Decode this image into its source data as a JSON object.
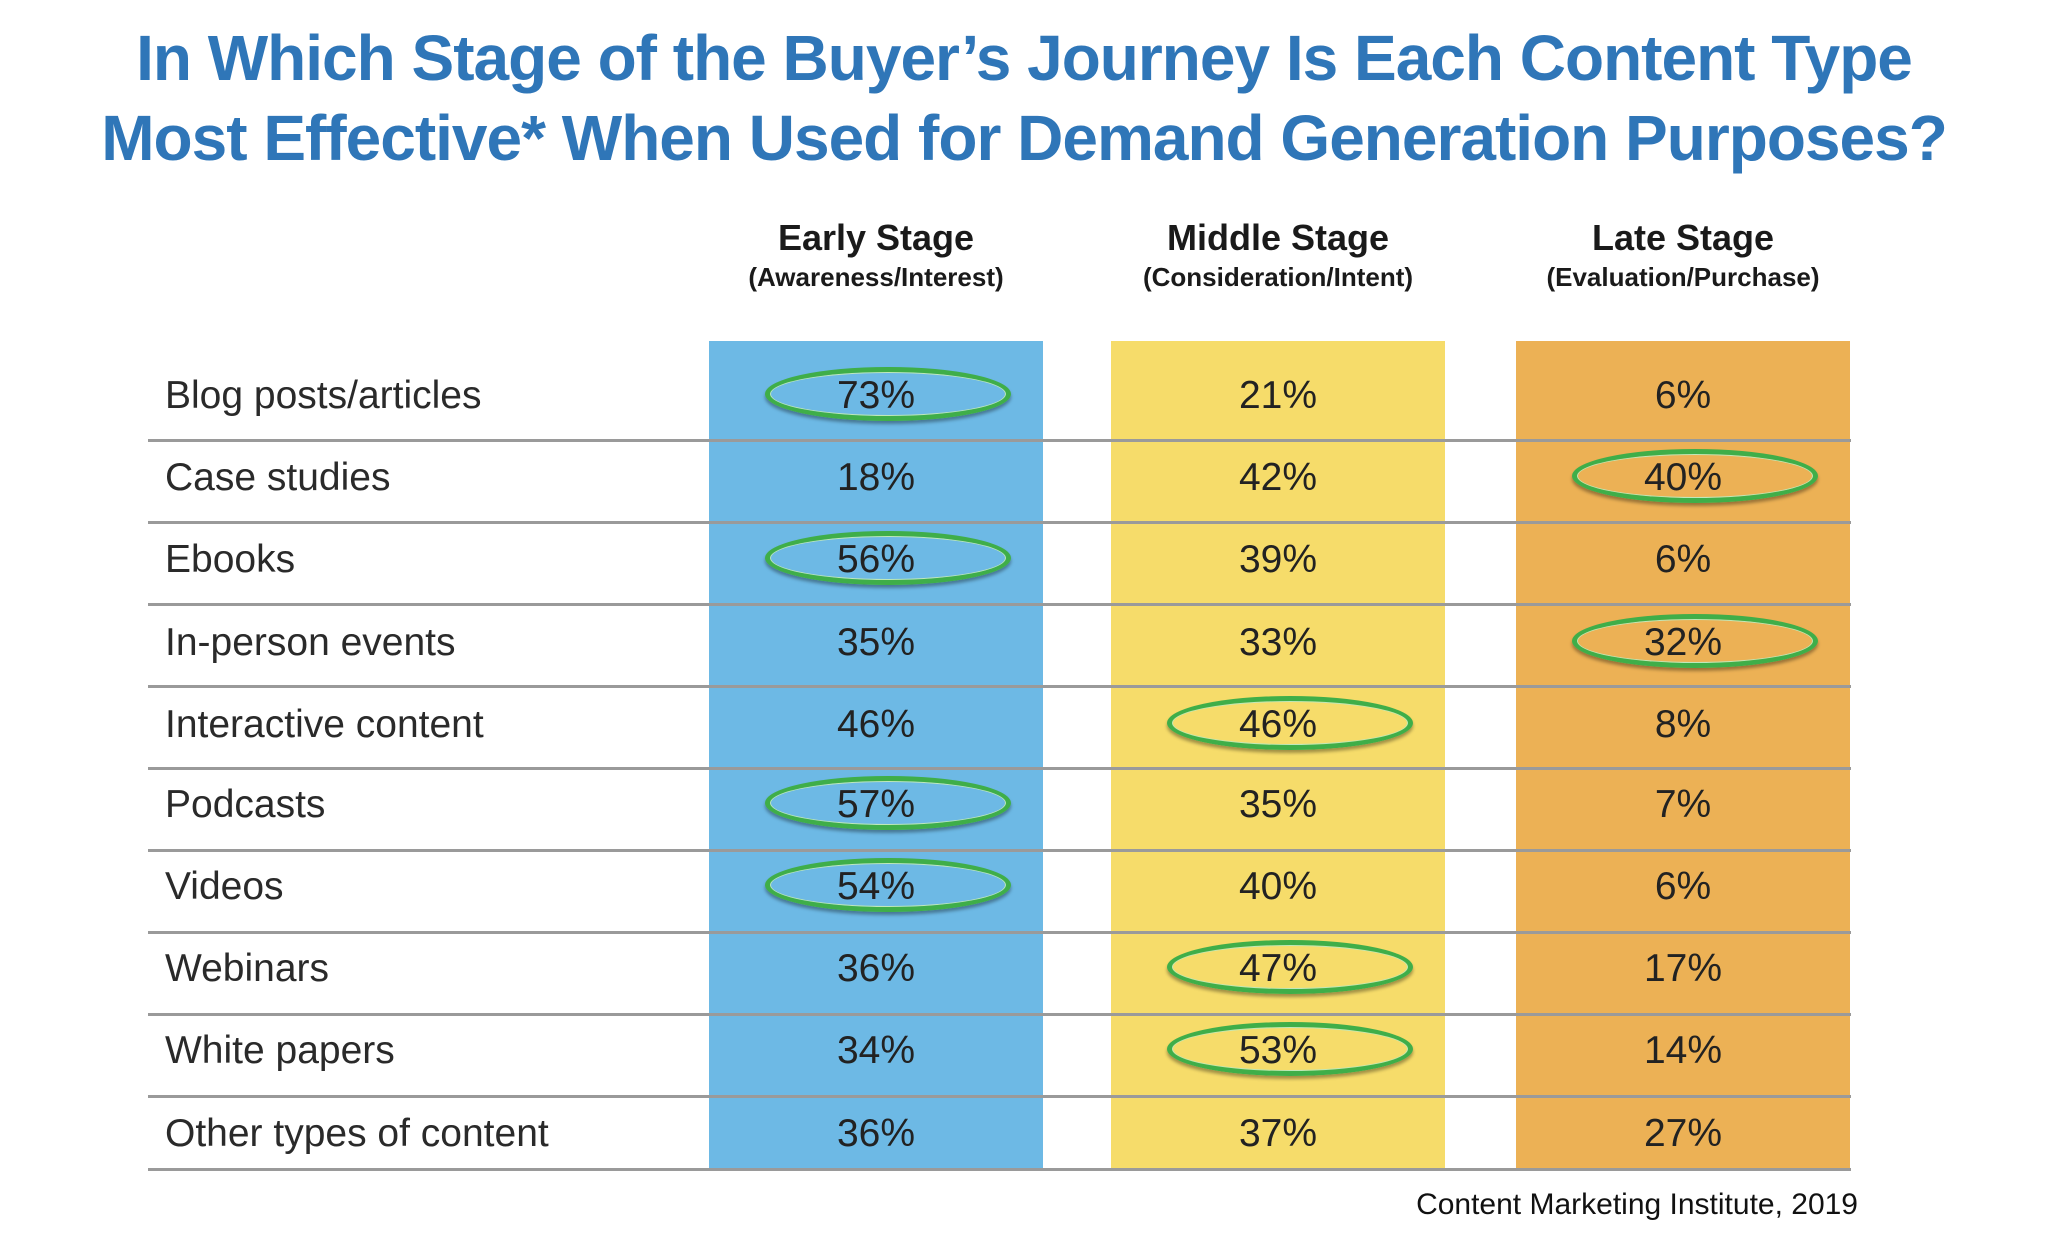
{
  "chart_data": {
    "type": "table",
    "title_line1": "In Which Stage of the Buyer’s Journey Is Each Content Type",
    "title_line2": "Most Effective* When Used for Demand Generation Purposes?",
    "columns": [
      {
        "label": "Early Stage",
        "sublabel": "(Awareness/Interest)",
        "color": "#6db9e5"
      },
      {
        "label": "Middle Stage",
        "sublabel": "(Consideration/Intent)",
        "color": "#f6dc6a"
      },
      {
        "label": "Late Stage",
        "sublabel": "(Evaluation/Purchase)",
        "color": "#ecb155"
      }
    ],
    "rows": [
      {
        "label": "Blog posts/articles",
        "values": [
          "73%",
          "21%",
          "6%"
        ],
        "highlighted": [
          0
        ]
      },
      {
        "label": "Case studies",
        "values": [
          "18%",
          "42%",
          "40%"
        ],
        "highlighted": [
          2
        ]
      },
      {
        "label": "Ebooks",
        "values": [
          "56%",
          "39%",
          "6%"
        ],
        "highlighted": [
          0
        ]
      },
      {
        "label": "In-person events",
        "values": [
          "35%",
          "33%",
          "32%"
        ],
        "highlighted": [
          2
        ]
      },
      {
        "label": "Interactive content",
        "values": [
          "46%",
          "46%",
          "8%"
        ],
        "highlighted": [
          1
        ]
      },
      {
        "label": "Podcasts",
        "values": [
          "57%",
          "35%",
          "7%"
        ],
        "highlighted": [
          0
        ]
      },
      {
        "label": "Videos",
        "values": [
          "54%",
          "40%",
          "6%"
        ],
        "highlighted": [
          0
        ]
      },
      {
        "label": "Webinars",
        "values": [
          "36%",
          "47%",
          "17%"
        ],
        "highlighted": [
          1
        ]
      },
      {
        "label": "White papers",
        "values": [
          "34%",
          "53%",
          "14%"
        ],
        "highlighted": [
          1
        ]
      },
      {
        "label": "Other types of content",
        "values": [
          "36%",
          "37%",
          "27%"
        ],
        "highlighted": []
      }
    ],
    "highlight_color": "#3fae49",
    "separator_color": "#9a9a9a",
    "source": "Content Marketing Institute, 2019"
  }
}
